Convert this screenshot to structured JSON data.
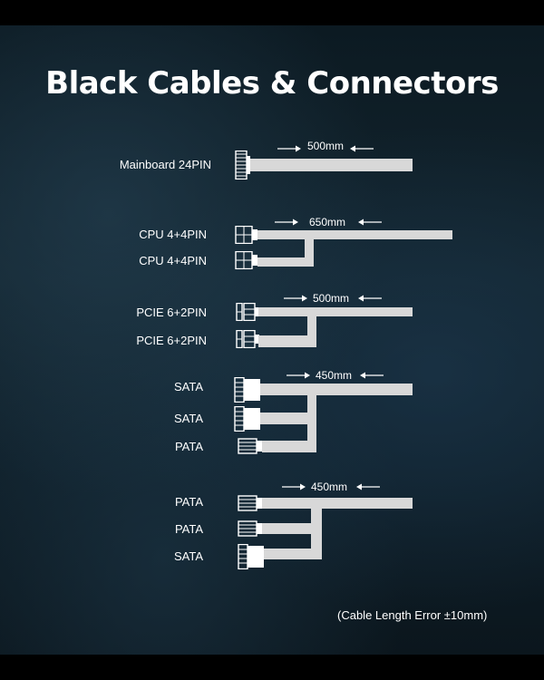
{
  "title": "Black Cables & Connectors",
  "note": "(Cable Length Error ±10mm)",
  "groups": [
    {
      "length": "500mm",
      "connectors": [
        {
          "label": "Mainboard 24PIN"
        }
      ]
    },
    {
      "length": "650mm",
      "connectors": [
        {
          "label": "CPU 4+4PIN"
        },
        {
          "label": "CPU 4+4PIN"
        }
      ]
    },
    {
      "length": "500mm",
      "connectors": [
        {
          "label": "PCIE 6+2PIN"
        },
        {
          "label": "PCIE 6+2PIN"
        }
      ]
    },
    {
      "length": "450mm",
      "connectors": [
        {
          "label": "SATA"
        },
        {
          "label": "SATA"
        },
        {
          "label": "PATA"
        }
      ]
    },
    {
      "length": "450mm",
      "connectors": [
        {
          "label": "PATA"
        },
        {
          "label": "PATA"
        },
        {
          "label": "SATA"
        }
      ]
    }
  ],
  "colors": {
    "cable": "#d8d8d8",
    "text": "#ffffff"
  }
}
